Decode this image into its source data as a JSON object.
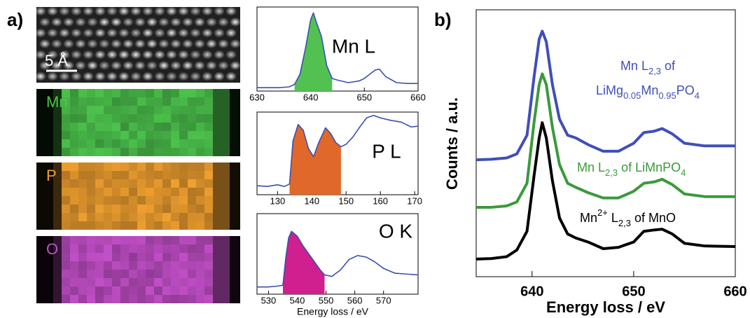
{
  "panel_labels": [
    "a)",
    "b)"
  ],
  "images": {
    "scale_bar": "5 Å",
    "maps": [
      {
        "label": "Mn",
        "color": "#4cc24c"
      },
      {
        "label": "P",
        "color": "#f0a030"
      },
      {
        "label": "O",
        "color": "#c24fc8"
      }
    ]
  },
  "chart_data": [
    {
      "type": "line",
      "label": "Mn L",
      "color": "#3b4fb0",
      "fill_color": "#52c152",
      "fill_xlim": [
        637,
        644
      ],
      "xlim": [
        630,
        660
      ],
      "xticks": [
        630,
        640,
        650,
        660
      ],
      "ylim": [
        0,
        10
      ],
      "x": [
        630,
        634,
        636,
        637,
        638,
        639,
        640,
        640.5,
        641,
        642,
        643,
        644,
        645,
        647,
        649,
        650,
        651,
        652,
        652.8,
        654,
        656,
        658,
        660
      ],
      "values": [
        0.4,
        0.4,
        0.5,
        0.8,
        2,
        5,
        8.5,
        9.3,
        8.3,
        6.5,
        3,
        1.5,
        1.3,
        1.0,
        1.2,
        1.5,
        2.0,
        2.5,
        2.6,
        1.7,
        1.0,
        0.9,
        0.9
      ]
    },
    {
      "type": "line",
      "label": "P L",
      "color": "#3b4fb0",
      "fill_color": "#e0682a",
      "fill_xlim": [
        133.5,
        148.5
      ],
      "xlim": [
        124,
        171
      ],
      "xticks": [
        130,
        140,
        150,
        160,
        170
      ],
      "ylim": [
        0,
        10
      ],
      "x": [
        124,
        127,
        130,
        132,
        133.5,
        134.5,
        136,
        137.5,
        139,
        140.5,
        142,
        144,
        145.5,
        147,
        148.5,
        150,
        152,
        154,
        156,
        158,
        160,
        163,
        166,
        169,
        171
      ],
      "values": [
        1.1,
        1.0,
        1.2,
        1.0,
        1.3,
        6.5,
        8.5,
        7.8,
        5.6,
        4.6,
        6.3,
        8.1,
        7.4,
        6.3,
        5.8,
        6.1,
        7.0,
        8.2,
        9.3,
        9.6,
        9.3,
        9.0,
        8.8,
        8.2,
        8.3
      ]
    },
    {
      "type": "line",
      "label": "O K",
      "color": "#3b4fb0",
      "fill_color": "#d01f8f",
      "fill_xlim": [
        535,
        549.5
      ],
      "xlim": [
        526,
        582
      ],
      "xticks": [
        530,
        540,
        550,
        560,
        570
      ],
      "ylim": [
        0,
        10
      ],
      "xlabel": "Energy loss / eV",
      "x": [
        526,
        530,
        533,
        535,
        536,
        537,
        538,
        540,
        542,
        544,
        546,
        548,
        549.5,
        552,
        555,
        558,
        561,
        564,
        567,
        570,
        574,
        578,
        582
      ],
      "values": [
        0.9,
        0.9,
        1.0,
        1.1,
        4.5,
        7.0,
        7.8,
        7.2,
        6.0,
        5.0,
        4.0,
        3.0,
        2.4,
        2.2,
        3.0,
        4.3,
        4.8,
        4.6,
        4.0,
        3.2,
        2.6,
        2.5,
        2.4
      ]
    },
    {
      "type": "line",
      "xlabel": "Energy loss / eV",
      "ylabel": "Counts / a.u.",
      "xlim": [
        634.5,
        660
      ],
      "xticks": [
        640,
        650,
        660
      ],
      "ylim": [
        0,
        10
      ],
      "x": [
        634.5,
        636,
        637.5,
        638.5,
        639.5,
        640.2,
        640.7,
        641,
        641.4,
        642,
        642.7,
        643.5,
        644.3,
        645.5,
        647,
        648.5,
        650,
        651,
        652,
        652.8,
        653.8,
        655,
        657,
        660
      ],
      "series": [
        {
          "color": "#3f4fb8",
          "values": [
            4.38,
            4.4,
            4.45,
            4.6,
            5.3,
            7.5,
            8.9,
            9.2,
            8.8,
            7.2,
            5.9,
            5.3,
            5.2,
            4.95,
            4.7,
            4.7,
            5.0,
            5.4,
            5.45,
            5.55,
            5.35,
            5.0,
            4.9,
            4.9
          ]
        },
        {
          "color": "#3a9a3a",
          "values": [
            2.6,
            2.6,
            2.65,
            2.8,
            3.5,
            5.8,
            7.2,
            7.6,
            7.2,
            5.6,
            4.2,
            3.5,
            3.35,
            3.15,
            2.95,
            2.95,
            3.2,
            3.5,
            3.55,
            3.65,
            3.45,
            3.1,
            3.0,
            3.0
          ]
        },
        {
          "color": "#000000",
          "values": [
            0.66,
            0.68,
            0.75,
            1.0,
            1.7,
            3.8,
            5.2,
            5.77,
            5.2,
            3.6,
            2.2,
            1.6,
            1.45,
            1.3,
            1.05,
            1.1,
            1.3,
            1.7,
            1.75,
            1.78,
            1.6,
            1.25,
            1.15,
            1.13
          ]
        }
      ],
      "annotations": [
        {
          "color": "#3f4fb8",
          "lines": [
            [
              {
                "text": "Mn L"
              },
              {
                "text": "2,3",
                "style": "sub"
              },
              {
                "text": " of"
              }
            ],
            [
              {
                "text": "LiMg"
              },
              {
                "text": "0.05",
                "style": "sub"
              },
              {
                "text": "Mn"
              },
              {
                "text": "0.95",
                "style": "sub"
              },
              {
                "text": "PO"
              },
              {
                "text": "4",
                "style": "sub"
              }
            ]
          ]
        },
        {
          "color": "#3a9a3a",
          "lines": [
            [
              {
                "text": "Mn L"
              },
              {
                "text": "2,3",
                "style": "sub"
              },
              {
                "text": " of LiMnPO"
              },
              {
                "text": "4",
                "style": "sub"
              }
            ]
          ]
        },
        {
          "color": "#000000",
          "lines": [
            [
              {
                "text": "Mn"
              },
              {
                "text": "2+",
                "style": "sup"
              },
              {
                "text": " L"
              },
              {
                "text": "2,3",
                "style": "sub"
              },
              {
                "text": " of MnO"
              }
            ]
          ]
        }
      ]
    }
  ]
}
